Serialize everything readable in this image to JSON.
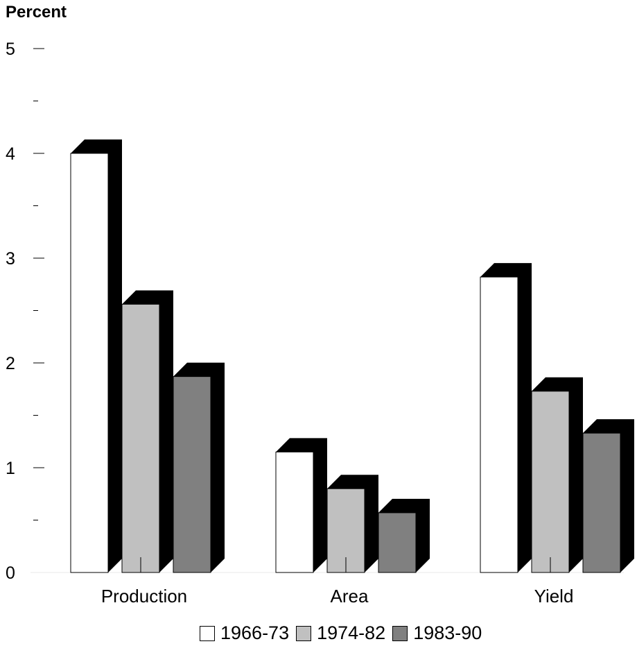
{
  "chart_data": {
    "type": "bar",
    "ylabel": "Percent",
    "xlabel": "",
    "title": "",
    "categories": [
      "Production",
      "Area",
      "Yield"
    ],
    "series": [
      {
        "name": "1966-73",
        "values": [
          4.0,
          1.15,
          2.82
        ],
        "color": "#ffffff"
      },
      {
        "name": "1974-82",
        "values": [
          2.56,
          0.8,
          1.73
        ],
        "color": "#c0c0c0"
      },
      {
        "name": "1983-90",
        "values": [
          1.87,
          0.57,
          1.33
        ],
        "color": "#808080"
      }
    ],
    "ylim": [
      0,
      5
    ],
    "yticks": [
      "0",
      "1",
      "2",
      "3",
      "4",
      "5"
    ],
    "grid": false,
    "legend_position": "bottom",
    "style": "3d-bars-with-black-shadow"
  }
}
